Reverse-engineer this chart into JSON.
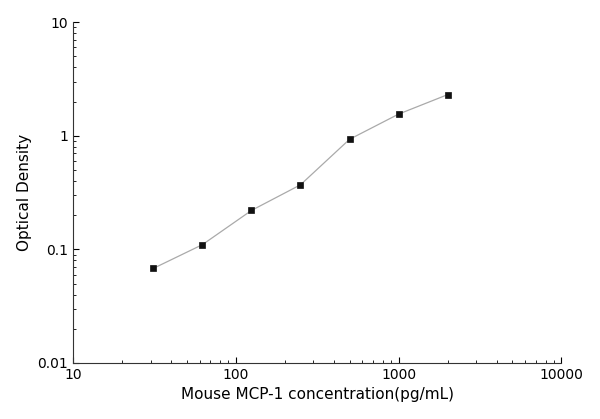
{
  "x": [
    31.25,
    62.5,
    125,
    250,
    500,
    1000,
    2000
  ],
  "y": [
    0.068,
    0.11,
    0.22,
    0.37,
    0.93,
    1.55,
    2.3
  ],
  "xlabel": "Mouse MCP-1 concentration(pg/mL)",
  "ylabel": "Optical Density",
  "xlim": [
    10,
    10000
  ],
  "ylim": [
    0.01,
    10
  ],
  "xticks": [
    10,
    100,
    1000,
    10000
  ],
  "yticks": [
    0.01,
    0.1,
    1,
    10
  ],
  "line_color": "#aaaaaa",
  "marker_color": "#111111",
  "marker": "s",
  "marker_size": 5,
  "line_width": 0.9,
  "background_color": "#ffffff",
  "xlabel_fontsize": 11,
  "ylabel_fontsize": 11,
  "tick_fontsize": 10
}
